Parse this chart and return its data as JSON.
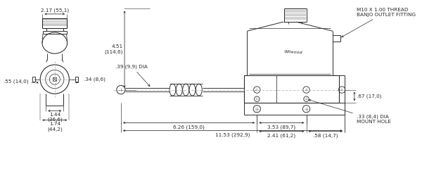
{
  "bg_color": "#ffffff",
  "lc": "#2a2a2a",
  "dc": "#2a2a2a",
  "fs": 5.2,
  "annotations": {
    "top_width": "2.17 (55,1)",
    "height_451": "4.51\n(114,6)",
    "dia_39": ".39 (9,9) DIA",
    "dim_055": ".55 (14,0)",
    "dim_034": ".34 (8,6)",
    "dim_144": "1.44\n(36,6)",
    "dim_174": "1.74\n(44,2)",
    "dim_626": "6.26 (159,0)",
    "dim_353": "3.53 (89,7)",
    "dim_1153": "11.53 (292,9)",
    "dim_241": "2.41 (61,2)",
    "dim_058": ".58 (14,7)",
    "dim_067": ".67 (17,0)",
    "dim_033": ".33 (8,4) DIA\nMOUNT HOLE",
    "m10_text": "M10 X 1.00 THREAD\nBANJO OUTLET FITTING"
  }
}
